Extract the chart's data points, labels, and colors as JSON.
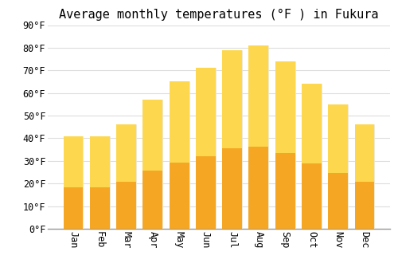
{
  "title": "Average monthly temperatures (°F ) in Fukura",
  "months": [
    "Jan",
    "Feb",
    "Mar",
    "Apr",
    "May",
    "Jun",
    "Jul",
    "Aug",
    "Sep",
    "Oct",
    "Nov",
    "Dec"
  ],
  "values": [
    41,
    41,
    46,
    57,
    65,
    71,
    79,
    81,
    74,
    64,
    55,
    46
  ],
  "bar_color_top": "#FDD84E",
  "bar_color_bottom": "#F5A623",
  "bar_edge_color": "#E8E8E8",
  "background_color": "#FFFFFF",
  "grid_color": "#DDDDDD",
  "ylim": [
    0,
    90
  ],
  "yticks": [
    0,
    10,
    20,
    30,
    40,
    50,
    60,
    70,
    80,
    90
  ],
  "title_fontsize": 11,
  "tick_fontsize": 8.5,
  "font_family": "monospace"
}
